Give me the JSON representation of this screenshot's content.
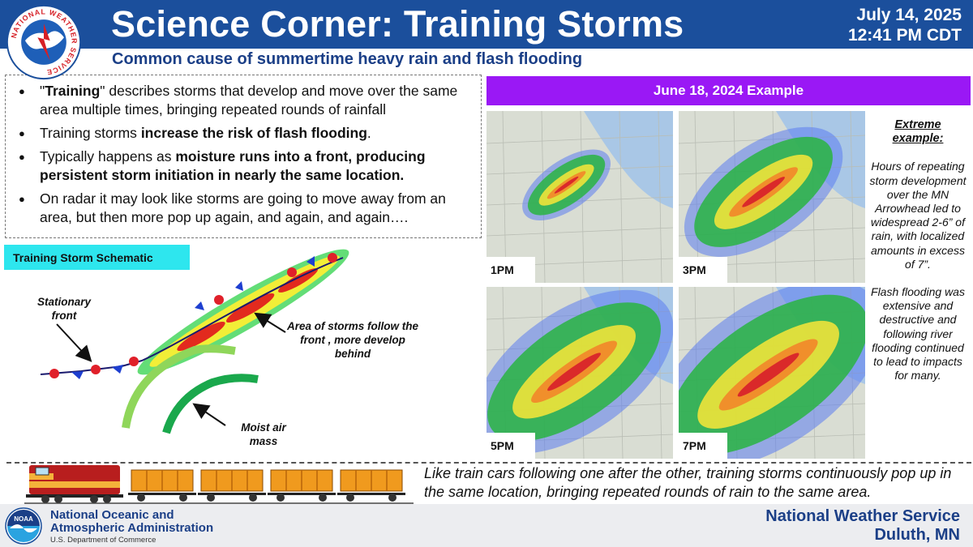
{
  "header": {
    "title": "Science Corner: Training Storms",
    "date": "July 14, 2025",
    "time": "12:41 PM CDT",
    "subtitle": "Common cause of summertime heavy rain and flash flooding",
    "logo_text": "NATIONAL WEATHER SERVICE"
  },
  "bullets": [
    {
      "parts": [
        {
          "t": "\"",
          "b": false
        },
        {
          "t": "Training",
          "b": true
        },
        {
          "t": "\" describes storms that develop and move over the same area multiple times, bringing repeated rounds of rainfall",
          "b": false
        }
      ]
    },
    {
      "parts": [
        {
          "t": "Training storms ",
          "b": false
        },
        {
          "t": "increase the risk of flash flooding",
          "b": true
        },
        {
          "t": ".",
          "b": false
        }
      ]
    },
    {
      "parts": [
        {
          "t": "Typically happens as ",
          "b": false
        },
        {
          "t": "moisture runs into a front, producing persistent storm initiation in nearly the same location.",
          "b": true
        }
      ]
    },
    {
      "parts": [
        {
          "t": "On radar it may look like storms are going to move away from an area, but then more pop up again, and again, and again….",
          "b": false
        }
      ]
    }
  ],
  "schematic": {
    "label": "Training Storm Schematic",
    "stationary_front": "Stationary front",
    "storms_note": "Area of storms follow the front , more develop behind",
    "moist_air": "Moist air mass"
  },
  "radar_panel": {
    "band": "June 18, 2024 Example",
    "frames": [
      {
        "label": "1PM",
        "coverage": 0.15
      },
      {
        "label": "3PM",
        "coverage": 0.5
      },
      {
        "label": "5PM",
        "coverage": 0.7
      },
      {
        "label": "7PM",
        "coverage": 0.85
      }
    ],
    "side_heading": "Extreme example:",
    "side_p1": "Hours of repeating storm development over the MN Arrowhead led to widespread 2-6” of rain, with localized amounts in excess of 7”.",
    "side_p2": "Flash flooding was extensive and destructive and following river flooding continued to lead to impacts for many."
  },
  "train": {
    "text": "Like train cars following one after the other, training storms continuously pop up in the same location, bringing repeated rounds of rain to the same area."
  },
  "footer": {
    "noaa_logo_text": "NOAA",
    "noaa_line1": "National Oceanic and",
    "noaa_line2": "Atmospheric Administration",
    "noaa_dept": "U.S. Department of Commerce",
    "office_line1": "National Weather Service",
    "office_line2": "Duluth, MN"
  },
  "colors": {
    "header_blue": "#1b4f9c",
    "band_purple": "#9a18f5",
    "label_cyan": "#2ee6ee",
    "footer_text": "#1b3f87"
  }
}
